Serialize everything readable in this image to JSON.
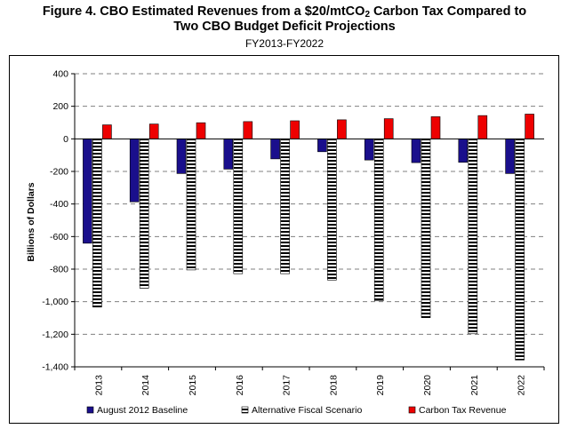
{
  "title_prefix": "Figure 4. CBO Estimated Revenues from a $20/mtCO",
  "title_subscript": "2",
  "title_suffix": " Carbon Tax Compared to",
  "title_line2": "Two CBO Budget Deficit Projections",
  "subtitle": "FY2013-FY2022",
  "chart_data": {
    "type": "bar",
    "categories": [
      "2013",
      "2014",
      "2015",
      "2016",
      "2017",
      "2018",
      "2019",
      "2020",
      "2021",
      "2022"
    ],
    "series": [
      {
        "name": "August 2012 Baseline",
        "color": "#1a0f8c",
        "values": [
          -641,
          -387,
          -213,
          -186,
          -123,
          -79,
          -130,
          -146,
          -144,
          -213
        ]
      },
      {
        "name": "Alternative Fiscal Scenario",
        "color": "#000000",
        "pattern": "horizontal-stripes",
        "values": [
          -1033,
          -917,
          -805,
          -828,
          -828,
          -867,
          -995,
          -1098,
          -1197,
          -1358
        ]
      },
      {
        "name": "Carbon Tax Revenue",
        "color": "#ee0000",
        "values": [
          86,
          91,
          99,
          106,
          111,
          117,
          124,
          136,
          143,
          152
        ]
      }
    ],
    "ylabel": "Billions of Dollars",
    "xlabel": "",
    "ylim": [
      -1400,
      400
    ],
    "yticks": [
      400,
      200,
      0,
      -200,
      -400,
      -600,
      -800,
      -1000,
      -1200,
      -1400
    ],
    "ytick_labels": [
      "400",
      "200",
      "0",
      "-200",
      "-400",
      "-600",
      "-800",
      "-1,000",
      "-1,200",
      "-1,400"
    ],
    "grid": true,
    "legend_position": "bottom"
  }
}
